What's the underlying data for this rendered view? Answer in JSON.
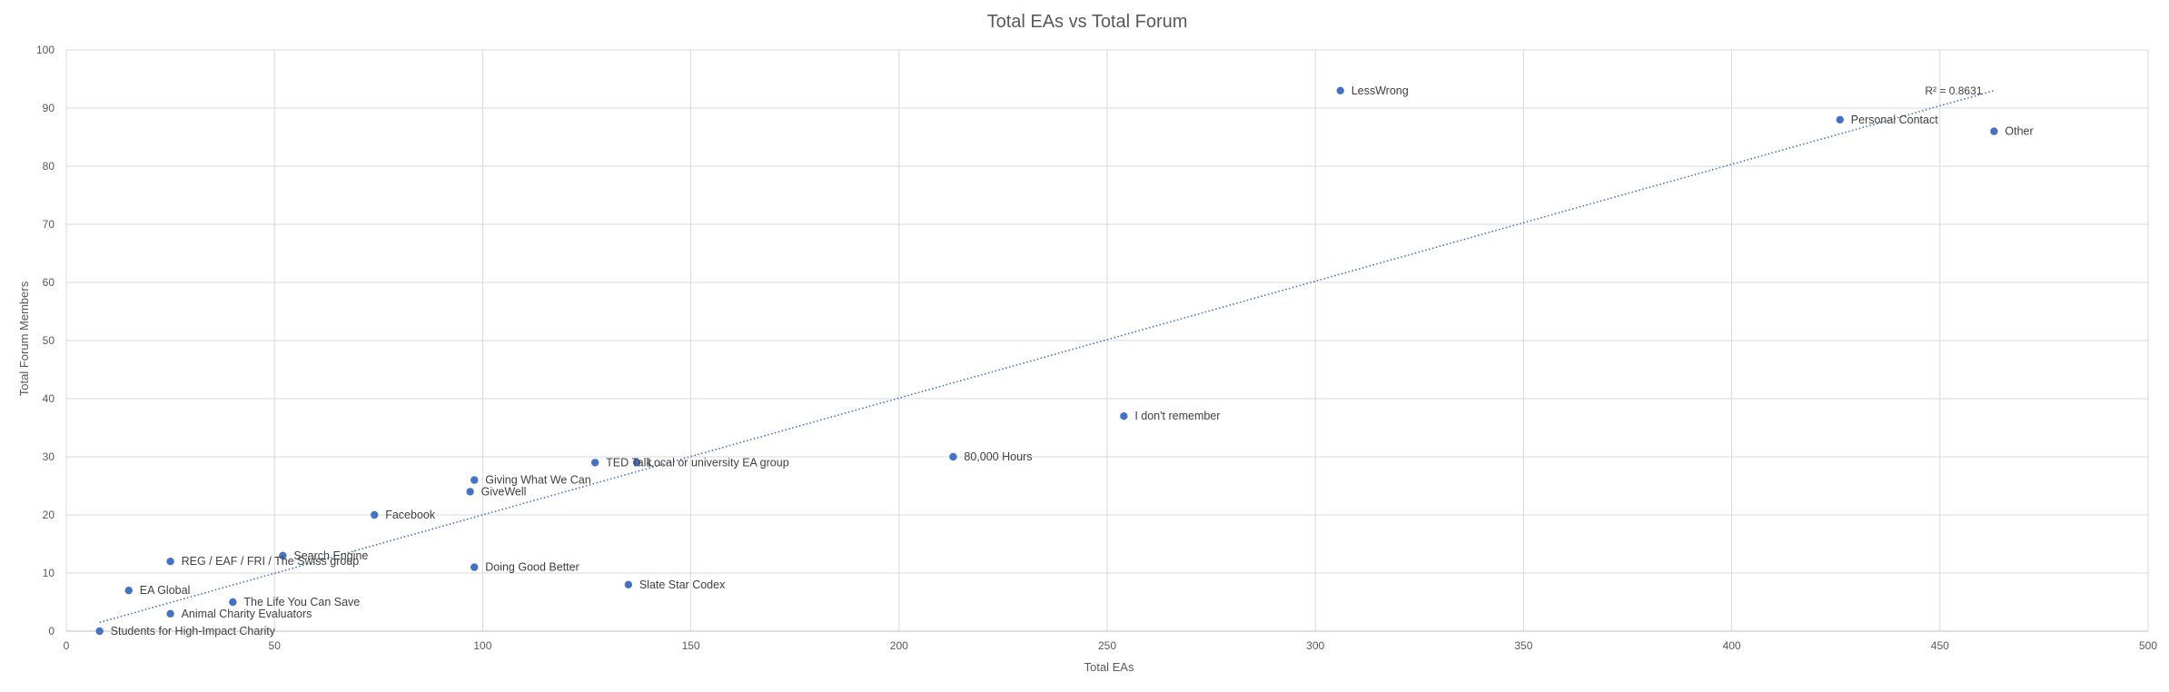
{
  "chart_data": {
    "type": "scatter",
    "title": "Total EAs vs Total Forum",
    "xlabel": "Total EAs",
    "ylabel": "Total Forum Members",
    "xlim": [
      0,
      500
    ],
    "ylim": [
      0,
      100
    ],
    "x_ticks": [
      "0",
      "50",
      "100",
      "150",
      "200",
      "250",
      "300",
      "350",
      "400",
      "450",
      "500"
    ],
    "y_ticks": [
      "0",
      "10",
      "20",
      "30",
      "40",
      "50",
      "60",
      "70",
      "80",
      "90",
      "100"
    ],
    "grid": true,
    "marker_color": "#4472c4",
    "points": [
      {
        "label": "Students for High-Impact Charity",
        "x": 8,
        "y": 0
      },
      {
        "label": "EA Global",
        "x": 15,
        "y": 7
      },
      {
        "label": "Animal Charity Evaluators",
        "x": 25,
        "y": 3
      },
      {
        "label": "REG / EAF / FRI / The Swiss group",
        "x": 25,
        "y": 12
      },
      {
        "label": "The Life You Can Save",
        "x": 40,
        "y": 5
      },
      {
        "label": "Search Engine",
        "x": 52,
        "y": 13
      },
      {
        "label": "Facebook",
        "x": 74,
        "y": 20
      },
      {
        "label": "GiveWell",
        "x": 97,
        "y": 24
      },
      {
        "label": "Giving What We Can",
        "x": 98,
        "y": 26
      },
      {
        "label": "Doing Good Better",
        "x": 98,
        "y": 11
      },
      {
        "label": "TED Talk",
        "x": 127,
        "y": 29
      },
      {
        "label": "Slate Star Codex",
        "x": 135,
        "y": 8
      },
      {
        "label": "Local or university EA group",
        "x": 137,
        "y": 29
      },
      {
        "label": "80,000 Hours",
        "x": 213,
        "y": 30
      },
      {
        "label": "I don't remember",
        "x": 254,
        "y": 37
      },
      {
        "label": "LessWrong",
        "x": 306,
        "y": 93
      },
      {
        "label": "Personal Contact",
        "x": 426,
        "y": 88
      },
      {
        "label": "Other",
        "x": 463,
        "y": 86
      }
    ],
    "trendline": {
      "type": "linear",
      "style": "dotted",
      "color": "#4472c4",
      "x": [
        8,
        463
      ],
      "y": [
        1.5,
        93
      ],
      "r_squared_label": "R² = 0.8631"
    }
  }
}
